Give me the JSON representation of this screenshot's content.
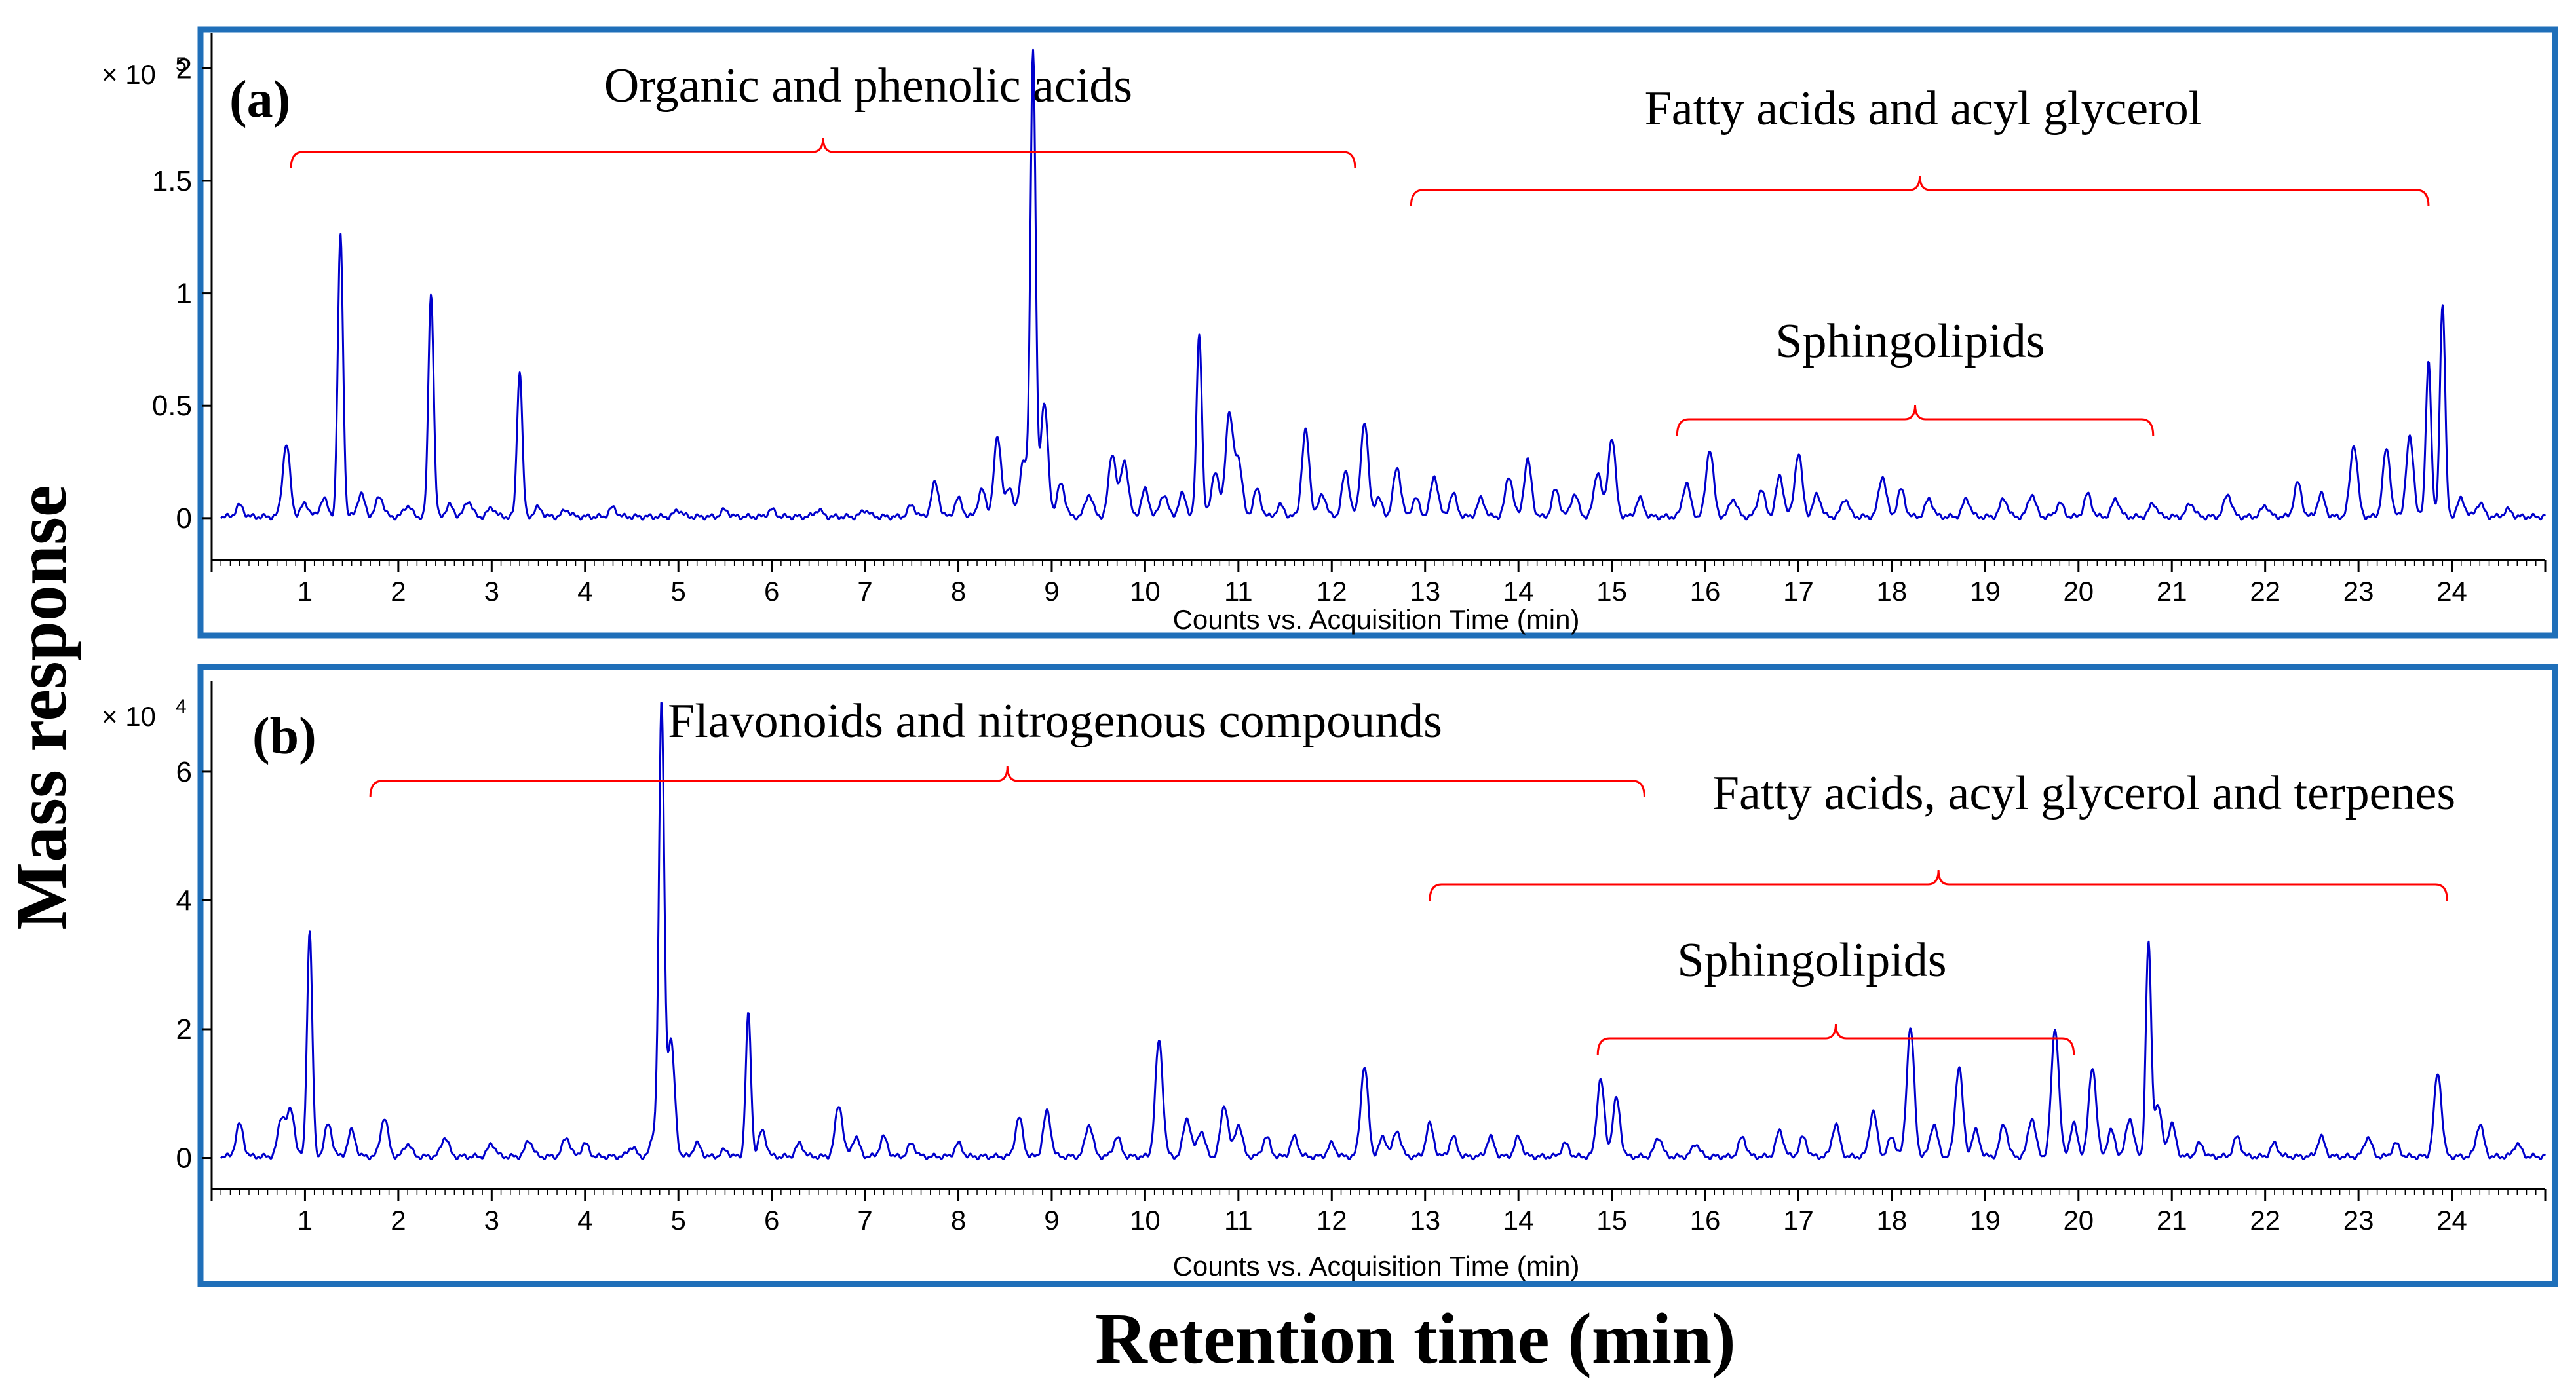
{
  "figure": {
    "ylabel": "Mass response",
    "xlabel": "Retention time (min)",
    "frame_color": "#1f6fb9",
    "trace_color": "#0000cc",
    "annotation_color": "#ff0000"
  },
  "chart_data": [
    {
      "type": "line",
      "panel_label": "(a)",
      "axis_xlabel": "Counts vs. Acquisition Time (min)",
      "y_multiplier": "× 10",
      "y_exponent": "5",
      "xlim": [
        0,
        25
      ],
      "ylim": [
        -0.05,
        2.1
      ],
      "x_ticks": [
        1,
        2,
        3,
        4,
        5,
        6,
        7,
        8,
        9,
        10,
        11,
        12,
        13,
        14,
        15,
        16,
        17,
        18,
        19,
        20,
        21,
        22,
        23,
        24
      ],
      "y_ticks": [
        0,
        0.5,
        1,
        1.5,
        2
      ],
      "y_tick_labels": [
        "0",
        "0.5",
        "1",
        "1.5",
        "2"
      ],
      "series": [
        {
          "name": "chromatogram-a",
          "peaks": [
            [
              0.3,
              0.05
            ],
            [
              0.8,
              0.32
            ],
            [
              1.0,
              0.06
            ],
            [
              1.2,
              0.08
            ],
            [
              1.38,
              1.25
            ],
            [
              1.6,
              0.1
            ],
            [
              1.8,
              0.09
            ],
            [
              2.1,
              0.05
            ],
            [
              2.35,
              1.0
            ],
            [
              2.55,
              0.05
            ],
            [
              2.75,
              0.07
            ],
            [
              3.0,
              0.04
            ],
            [
              3.3,
              0.65
            ],
            [
              3.5,
              0.04
            ],
            [
              3.8,
              0.03
            ],
            [
              4.3,
              0.04
            ],
            [
              5.0,
              0.03
            ],
            [
              5.5,
              0.03
            ],
            [
              6.0,
              0.03
            ],
            [
              6.5,
              0.03
            ],
            [
              7.0,
              0.03
            ],
            [
              7.5,
              0.05
            ],
            [
              7.75,
              0.15
            ],
            [
              8.0,
              0.08
            ],
            [
              8.25,
              0.12
            ],
            [
              8.42,
              0.35
            ],
            [
              8.55,
              0.12
            ],
            [
              8.7,
              0.25
            ],
            [
              8.8,
              2.05
            ],
            [
              8.92,
              0.5
            ],
            [
              9.1,
              0.15
            ],
            [
              9.4,
              0.1
            ],
            [
              9.65,
              0.28
            ],
            [
              9.78,
              0.25
            ],
            [
              10.0,
              0.12
            ],
            [
              10.2,
              0.1
            ],
            [
              10.4,
              0.1
            ],
            [
              10.58,
              0.82
            ],
            [
              10.75,
              0.2
            ],
            [
              10.9,
              0.45
            ],
            [
              11.0,
              0.25
            ],
            [
              11.2,
              0.12
            ],
            [
              11.45,
              0.05
            ],
            [
              11.72,
              0.38
            ],
            [
              11.9,
              0.1
            ],
            [
              12.15,
              0.2
            ],
            [
              12.35,
              0.42
            ],
            [
              12.5,
              0.08
            ],
            [
              12.7,
              0.22
            ],
            [
              12.9,
              0.08
            ],
            [
              13.1,
              0.18
            ],
            [
              13.3,
              0.1
            ],
            [
              13.6,
              0.08
            ],
            [
              13.9,
              0.18
            ],
            [
              14.1,
              0.25
            ],
            [
              14.4,
              0.12
            ],
            [
              14.6,
              0.1
            ],
            [
              14.85,
              0.2
            ],
            [
              15.0,
              0.35
            ],
            [
              15.3,
              0.08
            ],
            [
              15.8,
              0.15
            ],
            [
              16.05,
              0.3
            ],
            [
              16.3,
              0.08
            ],
            [
              16.6,
              0.12
            ],
            [
              16.8,
              0.18
            ],
            [
              17.0,
              0.28
            ],
            [
              17.2,
              0.1
            ],
            [
              17.5,
              0.08
            ],
            [
              17.9,
              0.18
            ],
            [
              18.1,
              0.12
            ],
            [
              18.4,
              0.08
            ],
            [
              18.8,
              0.08
            ],
            [
              19.2,
              0.08
            ],
            [
              19.5,
              0.1
            ],
            [
              19.8,
              0.06
            ],
            [
              20.1,
              0.1
            ],
            [
              20.4,
              0.08
            ],
            [
              20.8,
              0.06
            ],
            [
              21.2,
              0.06
            ],
            [
              21.6,
              0.1
            ],
            [
              22.0,
              0.05
            ],
            [
              22.35,
              0.15
            ],
            [
              22.6,
              0.1
            ],
            [
              22.95,
              0.32
            ],
            [
              23.3,
              0.3
            ],
            [
              23.55,
              0.35
            ],
            [
              23.75,
              0.7
            ],
            [
              23.9,
              0.95
            ],
            [
              24.1,
              0.08
            ],
            [
              24.3,
              0.06
            ],
            [
              24.6,
              0.03
            ]
          ]
        }
      ],
      "annotations": [
        {
          "text": "Organic and phenolic acids",
          "x_start": 0.85,
          "x_end": 12.25,
          "label_at": "above-left"
        },
        {
          "text": "Fatty acids and acyl glycerol",
          "x_start": 12.85,
          "x_end": 23.75,
          "label_at": "above-right"
        },
        {
          "text": "Sphingolipids",
          "x_start": 15.7,
          "x_end": 20.8,
          "label_at": "above-mid"
        }
      ]
    },
    {
      "type": "line",
      "panel_label": "(b)",
      "axis_xlabel": "Counts vs. Acquisition Time (min)",
      "y_multiplier": "× 10",
      "y_exponent": "4",
      "xlim": [
        0,
        25
      ],
      "ylim": [
        -0.3,
        7.2
      ],
      "x_ticks": [
        1,
        2,
        3,
        4,
        5,
        6,
        7,
        8,
        9,
        10,
        11,
        12,
        13,
        14,
        15,
        16,
        17,
        18,
        19,
        20,
        21,
        22,
        23,
        24
      ],
      "y_ticks": [
        0,
        2,
        4,
        6
      ],
      "y_tick_labels": [
        "0",
        "2",
        "4",
        "6"
      ],
      "series": [
        {
          "name": "chromatogram-b",
          "peaks": [
            [
              0.3,
              0.5
            ],
            [
              0.75,
              0.6
            ],
            [
              0.85,
              0.7
            ],
            [
              1.05,
              3.5
            ],
            [
              1.25,
              0.5
            ],
            [
              1.5,
              0.4
            ],
            [
              1.85,
              0.6
            ],
            [
              2.1,
              0.2
            ],
            [
              2.5,
              0.3
            ],
            [
              3.0,
              0.2
            ],
            [
              3.4,
              0.25
            ],
            [
              3.8,
              0.3
            ],
            [
              4.0,
              0.2
            ],
            [
              4.5,
              0.15
            ],
            [
              4.75,
              0.4
            ],
            [
              4.82,
              6.9
            ],
            [
              4.92,
              1.8
            ],
            [
              5.2,
              0.2
            ],
            [
              5.5,
              0.1
            ],
            [
              5.75,
              2.2
            ],
            [
              5.9,
              0.4
            ],
            [
              6.3,
              0.2
            ],
            [
              6.72,
              0.8
            ],
            [
              6.9,
              0.3
            ],
            [
              7.2,
              0.3
            ],
            [
              7.5,
              0.2
            ],
            [
              8.0,
              0.2
            ],
            [
              8.65,
              0.6
            ],
            [
              8.95,
              0.7
            ],
            [
              9.4,
              0.5
            ],
            [
              9.7,
              0.3
            ],
            [
              10.15,
              1.8
            ],
            [
              10.45,
              0.6
            ],
            [
              10.6,
              0.4
            ],
            [
              10.85,
              0.8
            ],
            [
              11.0,
              0.5
            ],
            [
              11.3,
              0.3
            ],
            [
              11.6,
              0.3
            ],
            [
              12.0,
              0.2
            ],
            [
              12.35,
              1.4
            ],
            [
              12.55,
              0.3
            ],
            [
              12.7,
              0.4
            ],
            [
              13.05,
              0.5
            ],
            [
              13.3,
              0.3
            ],
            [
              13.7,
              0.3
            ],
            [
              14.0,
              0.3
            ],
            [
              14.5,
              0.2
            ],
            [
              14.88,
              1.2
            ],
            [
              15.05,
              0.9
            ],
            [
              15.5,
              0.3
            ],
            [
              15.9,
              0.2
            ],
            [
              16.4,
              0.3
            ],
            [
              16.8,
              0.4
            ],
            [
              17.05,
              0.3
            ],
            [
              17.4,
              0.5
            ],
            [
              17.8,
              0.7
            ],
            [
              18.0,
              0.3
            ],
            [
              18.2,
              2.0
            ],
            [
              18.45,
              0.5
            ],
            [
              18.72,
              1.4
            ],
            [
              18.9,
              0.4
            ],
            [
              19.2,
              0.5
            ],
            [
              19.5,
              0.6
            ],
            [
              19.75,
              2.0
            ],
            [
              19.95,
              0.5
            ],
            [
              20.15,
              1.4
            ],
            [
              20.35,
              0.4
            ],
            [
              20.55,
              0.6
            ],
            [
              20.75,
              3.3
            ],
            [
              20.85,
              0.8
            ],
            [
              21.0,
              0.5
            ],
            [
              21.3,
              0.2
            ],
            [
              21.7,
              0.3
            ],
            [
              22.1,
              0.2
            ],
            [
              22.6,
              0.3
            ],
            [
              23.1,
              0.3
            ],
            [
              23.4,
              0.2
            ],
            [
              23.85,
              1.3
            ],
            [
              24.3,
              0.5
            ],
            [
              24.7,
              0.2
            ]
          ]
        }
      ],
      "annotations": [
        {
          "text": "Flavonoids and nitrogenous compounds",
          "x_start": 1.7,
          "x_end": 15.35,
          "label_at": "above-left"
        },
        {
          "text": "Fatty acids, acyl glycerol and terpenes",
          "x_start": 13.05,
          "x_end": 23.95,
          "label_at": "above-right"
        },
        {
          "text": "Sphingolipids",
          "x_start": 14.85,
          "x_end": 19.95,
          "label_at": "above-mid"
        }
      ]
    }
  ]
}
